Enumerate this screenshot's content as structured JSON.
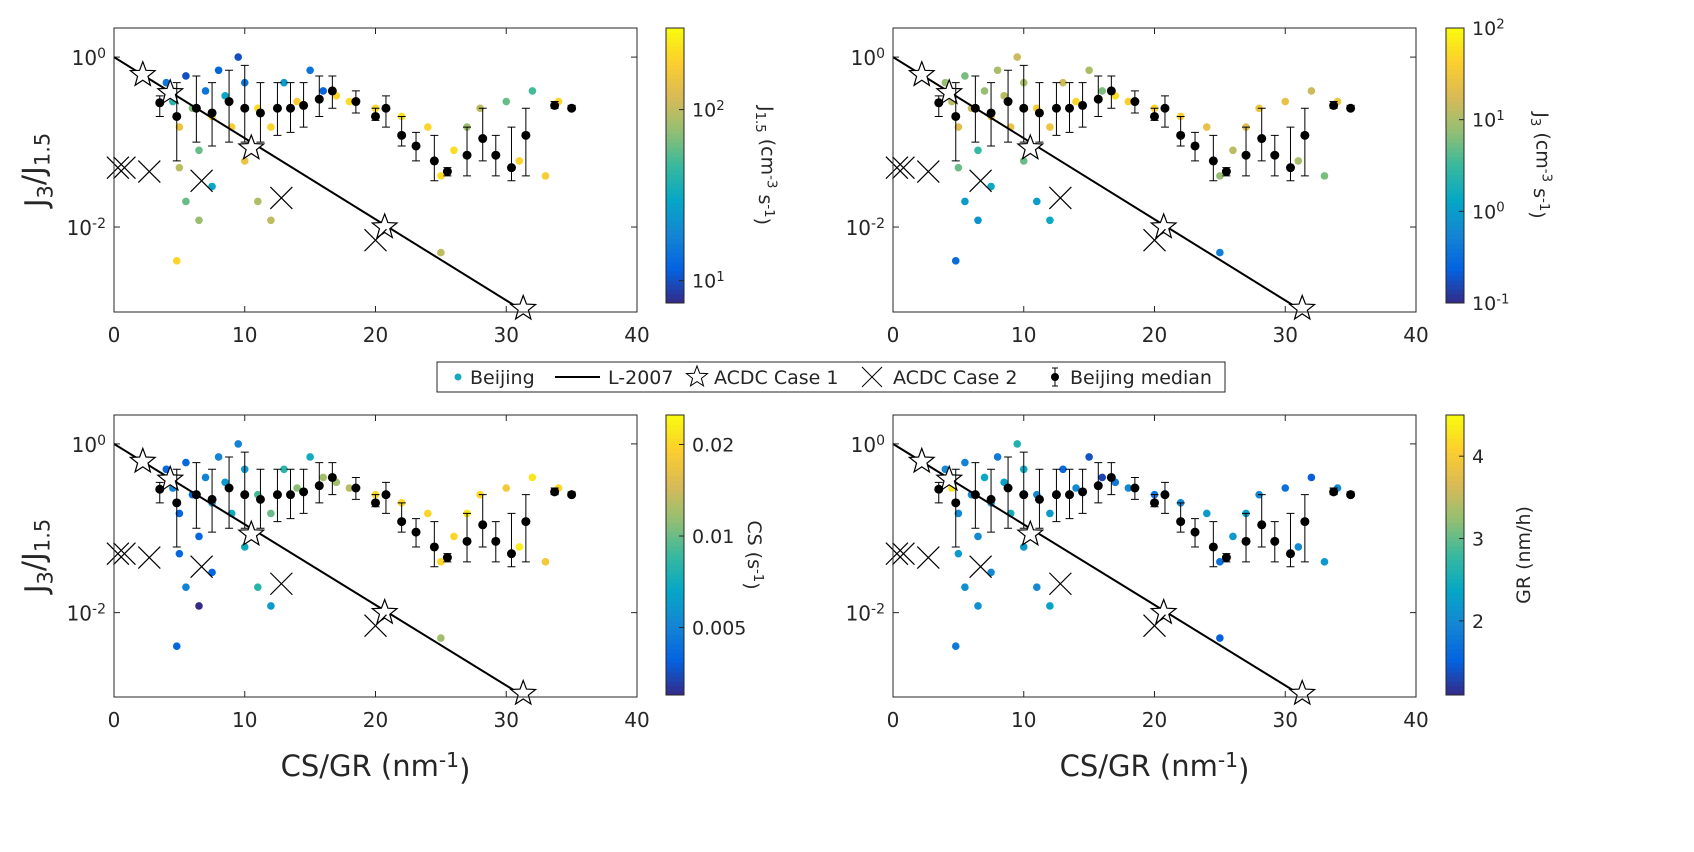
{
  "chart_data": {
    "type": "scatter",
    "xlim": [
      0,
      40
    ],
    "xticks": [
      0,
      10,
      20,
      30,
      40
    ],
    "ylim": [
      0.001,
      2.2
    ],
    "yscale": "log",
    "yticks": [
      {
        "value": 0.01,
        "label": "10",
        "exponent": "-2"
      },
      {
        "value": 1,
        "label": "10",
        "exponent": "0"
      }
    ],
    "colormap": [
      "#352a87",
      "#0363e1",
      "#1485d4",
      "#06a7c6",
      "#38b99e",
      "#92bf73",
      "#d9ba56",
      "#fcce2e",
      "#f9fb0e"
    ],
    "series": [
      {
        "name": "Beijing",
        "kind": "scatter",
        "color": "#17a8c4",
        "x": [
          4,
          4.5,
          5,
          5,
          5.5,
          4.8,
          5.5,
          6,
          6.5,
          6.5,
          7,
          7.5,
          7.5,
          8,
          8.5,
          9,
          9.5,
          10,
          10,
          11,
          11,
          12,
          12,
          13,
          14,
          15,
          16,
          17,
          18,
          20,
          22,
          22,
          24,
          25,
          25,
          26,
          27,
          28,
          30,
          31,
          32,
          33,
          34,
          35
        ],
        "y": [
          0.5,
          0.3,
          0.15,
          0.05,
          0.02,
          0.004,
          0.6,
          0.25,
          0.08,
          0.012,
          0.4,
          0.2,
          0.03,
          0.7,
          0.35,
          0.15,
          1.0,
          0.5,
          0.06,
          0.25,
          0.02,
          0.15,
          0.012,
          0.5,
          0.3,
          0.7,
          0.4,
          0.35,
          0.3,
          0.25,
          0.2,
          0.12,
          0.15,
          0.04,
          0.005,
          0.08,
          0.15,
          0.25,
          0.3,
          0.06,
          0.4,
          0.04,
          0.3,
          0.25
        ]
      },
      {
        "name": "L-2007",
        "kind": "line",
        "color": "#000000",
        "x": [
          0,
          31
        ],
        "y": [
          1,
          0.0011
        ]
      },
      {
        "name": "ACDC Case 1",
        "kind": "star",
        "color": "#000000",
        "x": [
          2.2,
          4.3,
          10.5,
          20.7,
          31.3
        ],
        "y": [
          0.62,
          0.38,
          0.085,
          0.01,
          0.0011
        ]
      },
      {
        "name": "ACDC Case 2",
        "kind": "cross",
        "color": "#000000",
        "x": [
          0.3,
          0.8,
          2.7,
          6.7,
          12.8,
          20
        ],
        "y": [
          0.05,
          0.05,
          0.045,
          0.035,
          0.022,
          0.007
        ]
      },
      {
        "name": "Beijing median",
        "kind": "errorbar",
        "color": "#000000",
        "x": [
          3.5,
          4.8,
          6.3,
          7.5,
          8.8,
          10,
          11.2,
          12.5,
          13.5,
          14.5,
          15.7,
          16.7,
          18.5,
          20,
          20.8,
          22,
          23.1,
          24.5,
          25.5,
          27,
          28.2,
          29.2,
          30.4,
          31.5,
          33.7,
          35
        ],
        "y": [
          0.29,
          0.2,
          0.25,
          0.22,
          0.3,
          0.25,
          0.22,
          0.25,
          0.25,
          0.27,
          0.32,
          0.4,
          0.3,
          0.2,
          0.25,
          0.12,
          0.09,
          0.06,
          0.045,
          0.07,
          0.11,
          0.07,
          0.05,
          0.12,
          0.27,
          0.25
        ],
        "lower": [
          0.2,
          0.06,
          0.1,
          0.09,
          0.1,
          0.1,
          0.1,
          0.12,
          0.13,
          0.15,
          0.2,
          0.25,
          0.22,
          0.18,
          0.15,
          0.09,
          0.06,
          0.035,
          0.04,
          0.04,
          0.06,
          0.04,
          0.035,
          0.04,
          0.25,
          0.24
        ],
        "upper": [
          0.35,
          0.5,
          0.6,
          0.5,
          0.7,
          0.8,
          0.5,
          0.5,
          0.5,
          0.5,
          0.6,
          0.6,
          0.4,
          0.25,
          0.35,
          0.2,
          0.13,
          0.12,
          0.05,
          0.15,
          0.25,
          0.12,
          0.15,
          0.25,
          0.3,
          0.27
        ]
      }
    ],
    "panels": [
      {
        "ylabel": [
          {
            "text": "J"
          },
          {
            "text": "3",
            "shift": "sub"
          },
          {
            "text": "/J"
          },
          {
            "text": "1.5",
            "shift": "sub"
          }
        ],
        "colorbar": {
          "label": [
            {
              "text": "J"
            },
            {
              "text": "1.5",
              "shift": "sub"
            },
            {
              "text": " (cm"
            },
            {
              "text": "-3",
              "shift": "sup"
            },
            {
              "text": " s"
            },
            {
              "text": "-1",
              "shift": "sup"
            },
            {
              "text": ")"
            }
          ],
          "scale": "log",
          "clim": [
            7.4,
            300
          ],
          "ticks": [
            {
              "value": 10,
              "label": "10",
              "exponent": "1"
            },
            {
              "value": 100,
              "label": "10",
              "exponent": "2"
            }
          ]
        },
        "color_values": [
          15,
          40,
          150,
          100,
          60,
          200,
          10,
          70,
          60,
          80,
          15,
          200,
          30,
          12,
          30,
          180,
          10,
          15,
          150,
          220,
          90,
          200,
          100,
          25,
          180,
          15,
          12,
          200,
          220,
          200,
          220,
          200,
          200,
          220,
          100,
          220,
          80,
          100,
          60,
          200,
          50,
          180,
          200,
          220
        ]
      },
      {
        "colorbar": {
          "label": [
            {
              "text": "J"
            },
            {
              "text": "3",
              "shift": "sub"
            },
            {
              "text": " (cm"
            },
            {
              "text": "-3",
              "shift": "sup"
            },
            {
              "text": " s"
            },
            {
              "text": "-1",
              "shift": "sup"
            },
            {
              "text": ")"
            }
          ],
          "scale": "log",
          "clim": [
            0.1,
            100
          ],
          "ticks": [
            {
              "value": 0.1,
              "label": "10",
              "exponent": "-1"
            },
            {
              "value": 1,
              "label": "10",
              "exponent": "0"
            },
            {
              "value": 10,
              "label": "10",
              "exponent": "1"
            },
            {
              "value": 100,
              "label": "10",
              "exponent": "2"
            }
          ]
        },
        "color_values": [
          8,
          12,
          20,
          5,
          1,
          0.3,
          6,
          15,
          3,
          0.8,
          8,
          30,
          1.5,
          10,
          12,
          25,
          15,
          10,
          5,
          40,
          1,
          30,
          1.5,
          15,
          50,
          10,
          6,
          60,
          40,
          45,
          40,
          20,
          25,
          8,
          0.5,
          12,
          20,
          30,
          25,
          10,
          15,
          6,
          30,
          35
        ]
      },
      {
        "ylabel": [
          {
            "text": "J"
          },
          {
            "text": "3",
            "shift": "sub"
          },
          {
            "text": "/J"
          },
          {
            "text": "1.5",
            "shift": "sub"
          }
        ],
        "xlabel": [
          {
            "text": "CS/GR (nm"
          },
          {
            "text": "-1",
            "shift": "sup"
          },
          {
            "text": ")"
          }
        ],
        "colorbar": {
          "label": [
            {
              "text": "CS (s"
            },
            {
              "text": "-1",
              "shift": "sup"
            },
            {
              "text": ")"
            }
          ],
          "scale": "log",
          "clim": [
            0.003,
            0.025
          ],
          "ticks": [
            0.005,
            0.01,
            0.02
          ]
        },
        "color_values": [
          0.004,
          0.005,
          0.004,
          0.004,
          0.005,
          0.004,
          0.004,
          0.004,
          0.004,
          0.003,
          0.005,
          0.006,
          0.004,
          0.005,
          0.006,
          0.007,
          0.005,
          0.006,
          0.007,
          0.009,
          0.008,
          0.01,
          0.006,
          0.008,
          0.011,
          0.007,
          0.012,
          0.012,
          0.013,
          0.02,
          0.02,
          0.018,
          0.02,
          0.02,
          0.012,
          0.02,
          0.022,
          0.02,
          0.018,
          0.023,
          0.022,
          0.018,
          0.02,
          0.021
        ]
      },
      {
        "xlabel": [
          {
            "text": "CS/GR (nm"
          },
          {
            "text": "-1",
            "shift": "sup"
          },
          {
            "text": ")"
          }
        ],
        "colorbar": {
          "label": [
            {
              "text": "GR (nm/h)"
            }
          ],
          "scale": "linear",
          "clim": [
            1.1,
            4.5
          ],
          "ticks": [
            2,
            3,
            4
          ]
        },
        "color_values": [
          2.0,
          4.3,
          2.0,
          2.2,
          2.1,
          1.8,
          1.9,
          2.0,
          2.0,
          2.1,
          2.4,
          2.2,
          2.0,
          1.8,
          2.3,
          2.5,
          2.6,
          2.4,
          2.2,
          2.0,
          2.0,
          2.2,
          2.3,
          1.6,
          2.0,
          1.4,
          1.3,
          1.8,
          2.0,
          1.7,
          2.0,
          1.5,
          2.2,
          1.7,
          1.5,
          2.2,
          2.3,
          2.0,
          1.7,
          2.0,
          1.5,
          2.2,
          2.0,
          2.0
        ]
      }
    ]
  }
}
